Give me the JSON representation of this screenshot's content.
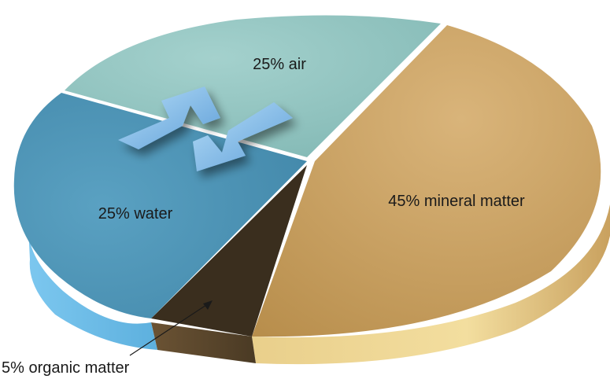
{
  "chart_data": {
    "type": "pie",
    "title": "",
    "slices": [
      {
        "label": "25% air",
        "value": 25,
        "color": "#8ec3bf"
      },
      {
        "label": "45% mineral matter",
        "value": 45,
        "color": "#c9a15f"
      },
      {
        "label": "5% organic matter",
        "value": 5,
        "color": "#3a2e1e"
      },
      {
        "label": "25% water",
        "value": 25,
        "color": "#4d93b6"
      }
    ],
    "annotations": [
      {
        "type": "double-arrow",
        "between": [
          "25% air",
          "25% water"
        ],
        "color": "#7fb7e3"
      }
    ],
    "style": "3d-exploded-pie"
  }
}
